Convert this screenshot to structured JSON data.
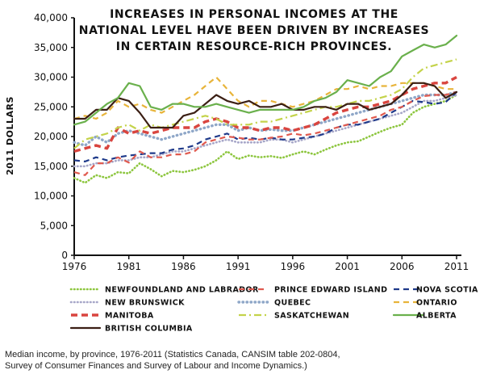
{
  "caption": "Median income, by province, 1976-2011 (Statistics Canada, CANSIM table 202-0804, Survey of Consumer Finances and Survey of Labour and Income Dynamics.)",
  "chart_data": {
    "type": "line",
    "title_lines": [
      "INCREASES IN PERSONAL INCOMES AT THE",
      "NATIONAL LEVEL HAVE BEEN DRIVEN BY INCREASES",
      "IN CERTAIN RESOURCE-RICH PROVINCES."
    ],
    "ylabel": "2011 DOLLARS",
    "ylim": [
      0,
      40000
    ],
    "xlim": [
      1976,
      2011
    ],
    "yticks": [
      0,
      5000,
      10000,
      15000,
      20000,
      25000,
      30000,
      35000,
      40000
    ],
    "ytick_labels": [
      "0",
      "5,000",
      "10,000",
      "15,000",
      "20,000",
      "25,000",
      "30,000",
      "35,000",
      "40,000"
    ],
    "xticks": [
      1976,
      1981,
      1986,
      1991,
      1996,
      2001,
      2006,
      2011
    ],
    "xtick_labels": [
      "1976",
      "1981",
      "1986",
      "1991",
      "1996",
      "2001",
      "2006",
      "2011"
    ],
    "legend_position": "bottom",
    "series": [
      {
        "name": "NEWFOUNDLAND AND LABRADOR",
        "color": "#8dc63f",
        "style": "dotted",
        "years": [
          1976,
          1977,
          1978,
          1979,
          1980,
          1981,
          1982,
          1983,
          1984,
          1985,
          1986,
          1987,
          1988,
          1989,
          1990,
          1991,
          1992,
          1993,
          1994,
          1995,
          1996,
          1997,
          1998,
          1999,
          2000,
          2001,
          2002,
          2003,
          2004,
          2005,
          2006,
          2007,
          2008,
          2009,
          2010,
          2011
        ],
        "values": [
          13000,
          12200,
          13500,
          13000,
          14000,
          13800,
          15500,
          14500,
          13300,
          14200,
          14000,
          14400,
          15000,
          16000,
          17500,
          16200,
          16800,
          16500,
          16700,
          16400,
          17000,
          17500,
          17000,
          17800,
          18500,
          19000,
          19200,
          20000,
          20800,
          21500,
          22000,
          24000,
          25000,
          25500,
          26000,
          27000
        ]
      },
      {
        "name": "PRINCE EDWARD ISLAND",
        "color": "#e05a4f",
        "style": "dashed",
        "years": [
          1976,
          1977,
          1978,
          1979,
          1980,
          1981,
          1982,
          1983,
          1984,
          1985,
          1986,
          1987,
          1988,
          1989,
          1990,
          1991,
          1992,
          1993,
          1994,
          1995,
          1996,
          1997,
          1998,
          1999,
          2000,
          2001,
          2002,
          2003,
          2004,
          2005,
          2006,
          2007,
          2008,
          2009,
          2010,
          2011
        ],
        "values": [
          14000,
          13500,
          15500,
          15500,
          16500,
          15600,
          17500,
          16500,
          16500,
          17000,
          17000,
          17500,
          19000,
          19500,
          20000,
          19800,
          19500,
          19500,
          19800,
          20000,
          20500,
          20200,
          20500,
          21000,
          21500,
          22000,
          22500,
          23000,
          23500,
          24500,
          25000,
          26000,
          26800,
          27000,
          27000,
          27500
        ]
      },
      {
        "name": "NOVA SCOTIA",
        "color": "#1f3a8a",
        "style": "dashed",
        "years": [
          1976,
          1977,
          1978,
          1979,
          1980,
          1981,
          1982,
          1983,
          1984,
          1985,
          1986,
          1987,
          1988,
          1989,
          1990,
          1991,
          1992,
          1993,
          1994,
          1995,
          1996,
          1997,
          1998,
          1999,
          2000,
          2001,
          2002,
          2003,
          2004,
          2005,
          2006,
          2007,
          2008,
          2009,
          2010,
          2011
        ],
        "values": [
          16000,
          15800,
          16500,
          16000,
          16500,
          16800,
          17000,
          17200,
          17200,
          17800,
          18000,
          18500,
          19500,
          20000,
          20500,
          19500,
          19800,
          19500,
          19800,
          19500,
          19500,
          19800,
          20000,
          20500,
          21500,
          22000,
          22000,
          22500,
          23000,
          24000,
          25000,
          26000,
          25800,
          25500,
          25800,
          27500
        ]
      },
      {
        "name": "NEW BRUNSWICK",
        "color": "#a6a6c8",
        "style": "dotted",
        "years": [
          1976,
          1977,
          1978,
          1979,
          1980,
          1981,
          1982,
          1983,
          1984,
          1985,
          1986,
          1987,
          1988,
          1989,
          1990,
          1991,
          1992,
          1993,
          1994,
          1995,
          1996,
          1997,
          1998,
          1999,
          2000,
          2001,
          2002,
          2003,
          2004,
          2005,
          2006,
          2007,
          2008,
          2009,
          2010,
          2011
        ],
        "values": [
          15000,
          15000,
          15500,
          15500,
          16000,
          16000,
          16500,
          16500,
          17000,
          17500,
          17500,
          18000,
          18500,
          19000,
          19500,
          19000,
          19000,
          19000,
          19500,
          19500,
          19000,
          19500,
          20000,
          20500,
          21000,
          21500,
          22000,
          22500,
          23000,
          23500,
          24000,
          25000,
          26000,
          26000,
          26500,
          27000
        ]
      },
      {
        "name": "QUEBEC",
        "color": "#8fa7c8",
        "style": "dotted-thick",
        "years": [
          1976,
          1977,
          1978,
          1979,
          1980,
          1981,
          1982,
          1983,
          1984,
          1985,
          1986,
          1987,
          1988,
          1989,
          1990,
          1991,
          1992,
          1993,
          1994,
          1995,
          1996,
          1997,
          1998,
          1999,
          2000,
          2001,
          2002,
          2003,
          2004,
          2005,
          2006,
          2007,
          2008,
          2009,
          2010,
          2011
        ],
        "values": [
          19000,
          18500,
          20000,
          19000,
          20500,
          21000,
          20500,
          20000,
          19500,
          20000,
          20500,
          21000,
          21500,
          22000,
          22000,
          21000,
          21500,
          21000,
          21200,
          21000,
          21000,
          21500,
          22000,
          22500,
          23000,
          23500,
          24000,
          24500,
          25000,
          25500,
          26000,
          26500,
          27000,
          27000,
          27000,
          27500
        ]
      },
      {
        "name": "ONTARIO",
        "color": "#e8b43a",
        "style": "dashed",
        "years": [
          1976,
          1977,
          1978,
          1979,
          1980,
          1981,
          1982,
          1983,
          1984,
          1985,
          1986,
          1987,
          1988,
          1989,
          1990,
          1991,
          1992,
          1993,
          1994,
          1995,
          1996,
          1997,
          1998,
          1999,
          2000,
          2001,
          2002,
          2003,
          2004,
          2005,
          2006,
          2007,
          2008,
          2009,
          2010,
          2011
        ],
        "values": [
          23000,
          23500,
          23000,
          24000,
          26000,
          25000,
          25500,
          24500,
          24000,
          25000,
          26000,
          27000,
          28500,
          30000,
          28000,
          26000,
          25000,
          26000,
          26000,
          25500,
          25000,
          25500,
          26000,
          27000,
          28000,
          28000,
          28500,
          28000,
          28500,
          28500,
          29000,
          29000,
          29000,
          28500,
          28000,
          28000
        ]
      },
      {
        "name": "MANITOBA",
        "color": "#d9453f",
        "style": "dashed-thick",
        "years": [
          1976,
          1977,
          1978,
          1979,
          1980,
          1981,
          1982,
          1983,
          1984,
          1985,
          1986,
          1987,
          1988,
          1989,
          1990,
          1991,
          1992,
          1993,
          1994,
          1995,
          1996,
          1997,
          1998,
          1999,
          2000,
          2001,
          2002,
          2003,
          2004,
          2005,
          2006,
          2007,
          2008,
          2009,
          2010,
          2011
        ],
        "values": [
          17500,
          18000,
          18500,
          18000,
          21500,
          20500,
          21000,
          20500,
          21000,
          21500,
          21500,
          21500,
          22500,
          23000,
          22500,
          21500,
          21500,
          21000,
          21500,
          21500,
          21000,
          21500,
          22000,
          23000,
          24000,
          24500,
          25000,
          25000,
          25500,
          26000,
          27000,
          28000,
          28500,
          29000,
          29000,
          30000
        ]
      },
      {
        "name": "SASKATCHEWAN",
        "color": "#c4d34a",
        "style": "dashdot",
        "years": [
          1976,
          1977,
          1978,
          1979,
          1980,
          1981,
          1982,
          1983,
          1984,
          1985,
          1986,
          1987,
          1988,
          1989,
          1990,
          1991,
          1992,
          1993,
          1994,
          1995,
          1996,
          1997,
          1998,
          1999,
          2000,
          2001,
          2002,
          2003,
          2004,
          2005,
          2006,
          2007,
          2008,
          2009,
          2010,
          2011
        ],
        "values": [
          18000,
          19500,
          20000,
          20500,
          21500,
          22000,
          21000,
          22000,
          21500,
          22000,
          22500,
          23000,
          23500,
          23000,
          22000,
          22000,
          22000,
          22500,
          22500,
          23000,
          23500,
          24000,
          24500,
          25000,
          25000,
          25500,
          26000,
          26000,
          26500,
          27000,
          28000,
          30000,
          31500,
          32000,
          32500,
          33000
        ]
      },
      {
        "name": "ALBERTA",
        "color": "#6ab04c",
        "style": "solid",
        "years": [
          1976,
          1977,
          1978,
          1979,
          1980,
          1981,
          1982,
          1983,
          1984,
          1985,
          1986,
          1987,
          1988,
          1989,
          1990,
          1991,
          1992,
          1993,
          1994,
          1995,
          1996,
          1997,
          1998,
          1999,
          2000,
          2001,
          2002,
          2003,
          2004,
          2005,
          2006,
          2007,
          2008,
          2009,
          2010,
          2011
        ],
        "values": [
          22000,
          22500,
          24000,
          25500,
          26500,
          29000,
          28500,
          25000,
          24500,
          25500,
          25500,
          25000,
          25000,
          25500,
          25000,
          24500,
          24000,
          24500,
          24500,
          24500,
          24500,
          25000,
          26000,
          26500,
          27500,
          29500,
          29000,
          28500,
          30000,
          31000,
          33500,
          34500,
          35500,
          35000,
          35500,
          37000
        ]
      },
      {
        "name": "BRITISH COLUMBIA",
        "color": "#3b1f14",
        "style": "solid",
        "years": [
          1976,
          1977,
          1978,
          1979,
          1980,
          1981,
          1982,
          1983,
          1984,
          1985,
          1986,
          1987,
          1988,
          1989,
          1990,
          1991,
          1992,
          1993,
          1994,
          1995,
          1996,
          1997,
          1998,
          1999,
          2000,
          2001,
          2002,
          2003,
          2004,
          2005,
          2006,
          2007,
          2008,
          2009,
          2010,
          2011
        ],
        "values": [
          23000,
          23000,
          24500,
          24500,
          26500,
          26000,
          24000,
          21500,
          21500,
          21500,
          23500,
          24000,
          25500,
          27000,
          26000,
          25500,
          26000,
          25000,
          25000,
          25500,
          24500,
          24500,
          25000,
          25000,
          24500,
          25500,
          25500,
          24500,
          25000,
          25500,
          27000,
          29000,
          29000,
          28500,
          26500,
          27500
        ]
      }
    ]
  }
}
